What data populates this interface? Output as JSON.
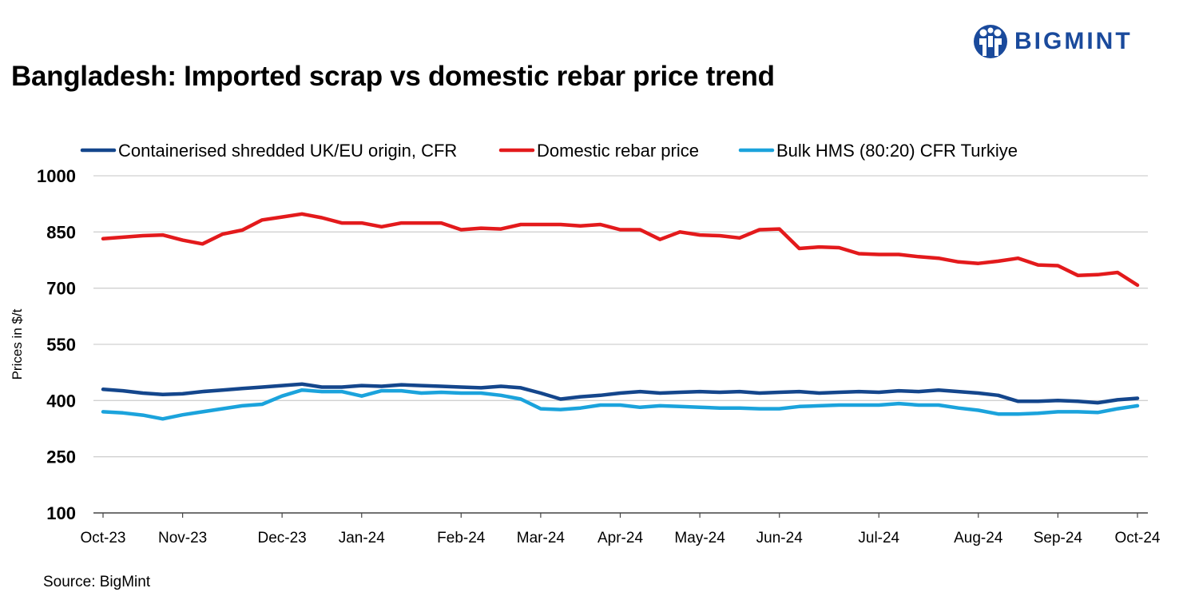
{
  "title": "Bangladesh: Imported scrap vs domestic rebar price trend",
  "logo": {
    "text": "BIGMINT",
    "icon": "bigmint-logo-icon",
    "color": "#1a4a9c"
  },
  "source": "Source: BigMint",
  "chart_data": {
    "type": "line",
    "title": "Bangladesh: Imported scrap vs domestic rebar price trend",
    "ylabel": "Prices in $/t",
    "xlabel": "",
    "ylim": [
      100,
      1000
    ],
    "yticks": [
      100,
      250,
      400,
      550,
      700,
      850,
      1000
    ],
    "grid": true,
    "legend_position": "top",
    "x_tick_labels": [
      {
        "label": "Oct-23",
        "index": 0
      },
      {
        "label": "Nov-23",
        "index": 4
      },
      {
        "label": "Dec-23",
        "index": 9
      },
      {
        "label": "Jan-24",
        "index": 13
      },
      {
        "label": "Feb-24",
        "index": 18
      },
      {
        "label": "Mar-24",
        "index": 22
      },
      {
        "label": "Apr-24",
        "index": 26
      },
      {
        "label": "May-24",
        "index": 30
      },
      {
        "label": "Jun-24",
        "index": 34
      },
      {
        "label": "Jul-24",
        "index": 39
      },
      {
        "label": "Aug-24",
        "index": 44
      },
      {
        "label": "Sep-24",
        "index": 48
      },
      {
        "label": "Oct-24",
        "index": 52
      }
    ],
    "series": [
      {
        "name": "Containerised shredded UK/EU origin, CFR",
        "color": "#14468c",
        "values": [
          430,
          426,
          420,
          416,
          418,
          424,
          428,
          432,
          436,
          440,
          444,
          436,
          436,
          440,
          438,
          442,
          440,
          438,
          436,
          434,
          438,
          434,
          420,
          404,
          410,
          414,
          420,
          424,
          420,
          422,
          424,
          422,
          424,
          420,
          422,
          424,
          420,
          422,
          424,
          422,
          426,
          424,
          428,
          424,
          420,
          414,
          398,
          398,
          400,
          398,
          394,
          402,
          406
        ]
      },
      {
        "name": "Domestic rebar price",
        "color": "#e31a1c",
        "values": [
          832,
          836,
          840,
          842,
          828,
          818,
          844,
          855,
          882,
          890,
          898,
          888,
          874,
          874,
          864,
          874,
          874,
          874,
          856,
          860,
          858,
          870,
          870,
          870,
          866,
          870,
          856,
          856,
          830,
          850,
          842,
          840,
          834,
          856,
          858,
          806,
          810,
          808,
          792,
          790,
          790,
          784,
          780,
          770,
          766,
          772,
          780,
          762,
          760,
          734,
          736,
          742,
          708
        ]
      },
      {
        "name": "Bulk HMS (80:20) CFR Turkiye",
        "color": "#1ba3dc",
        "values": [
          370,
          367,
          361,
          351,
          362,
          370,
          378,
          386,
          390,
          412,
          428,
          424,
          424,
          412,
          426,
          426,
          420,
          422,
          420,
          420,
          414,
          404,
          378,
          376,
          380,
          388,
          388,
          382,
          386,
          384,
          382,
          380,
          380,
          378,
          378,
          384,
          386,
          388,
          388,
          388,
          392,
          388,
          388,
          380,
          374,
          364,
          364,
          366,
          370,
          370,
          368,
          378,
          386
        ]
      }
    ]
  }
}
